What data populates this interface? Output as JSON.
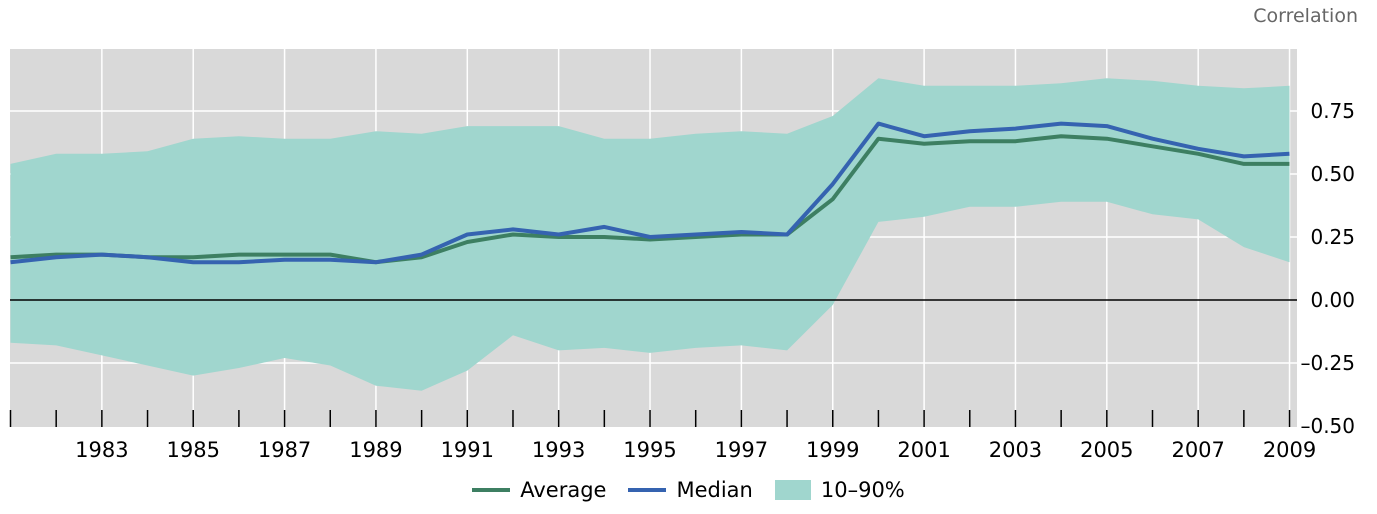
{
  "unit_label": "Correlation",
  "colors": {
    "plot_bg": "#d9d9d9",
    "grid": "#ffffff",
    "average": "#3d7f62",
    "median": "#3563b0",
    "band": "#a0d6ce",
    "zero_line": "#000000"
  },
  "legend": {
    "average": "Average",
    "median": "Median",
    "band": "10–90%"
  },
  "chart_data": {
    "type": "line",
    "title": "",
    "xlabel": "",
    "ylabel": "Correlation",
    "x": [
      1981,
      1982,
      1983,
      1984,
      1985,
      1986,
      1987,
      1988,
      1989,
      1990,
      1991,
      1992,
      1993,
      1994,
      1995,
      1996,
      1997,
      1998,
      1999,
      2000,
      2001,
      2002,
      2003,
      2004,
      2005,
      2006,
      2007,
      2008,
      2009
    ],
    "x_tick_labels": [
      "1983",
      "1985",
      "1987",
      "1989",
      "1991",
      "1993",
      "1995",
      "1997",
      "1999",
      "2001",
      "2003",
      "2005",
      "2007",
      "2009"
    ],
    "y_tick_labels": [
      "0.75",
      "0.50",
      "0.25",
      "0.00",
      "–0.25",
      "–0.50"
    ],
    "ylim": [
      -0.5,
      1.0
    ],
    "grid": true,
    "legend_position": "bottom",
    "series": [
      {
        "name": "Average",
        "type": "line",
        "values": [
          0.17,
          0.18,
          0.18,
          0.17,
          0.17,
          0.18,
          0.18,
          0.18,
          0.15,
          0.17,
          0.23,
          0.26,
          0.25,
          0.25,
          0.24,
          0.25,
          0.26,
          0.26,
          0.4,
          0.64,
          0.62,
          0.63,
          0.63,
          0.65,
          0.64,
          0.61,
          0.58,
          0.54,
          0.54
        ]
      },
      {
        "name": "Median",
        "type": "line",
        "values": [
          0.15,
          0.17,
          0.18,
          0.17,
          0.15,
          0.15,
          0.16,
          0.16,
          0.15,
          0.18,
          0.26,
          0.28,
          0.26,
          0.29,
          0.25,
          0.26,
          0.27,
          0.26,
          0.46,
          0.7,
          0.65,
          0.67,
          0.68,
          0.7,
          0.69,
          0.64,
          0.6,
          0.57,
          0.58
        ]
      },
      {
        "name": "10–90%",
        "type": "band",
        "lower": [
          -0.17,
          -0.18,
          -0.22,
          -0.26,
          -0.3,
          -0.27,
          -0.23,
          -0.26,
          -0.34,
          -0.36,
          -0.28,
          -0.14,
          -0.2,
          -0.19,
          -0.21,
          -0.19,
          -0.18,
          -0.2,
          -0.02,
          0.31,
          0.33,
          0.37,
          0.37,
          0.39,
          0.39,
          0.34,
          0.32,
          0.21,
          0.15
        ],
        "upper": [
          0.54,
          0.58,
          0.58,
          0.59,
          0.64,
          0.65,
          0.64,
          0.64,
          0.67,
          0.66,
          0.69,
          0.69,
          0.69,
          0.64,
          0.64,
          0.66,
          0.67,
          0.66,
          0.73,
          0.88,
          0.85,
          0.85,
          0.85,
          0.86,
          0.88,
          0.87,
          0.85,
          0.84,
          0.85
        ]
      }
    ]
  }
}
